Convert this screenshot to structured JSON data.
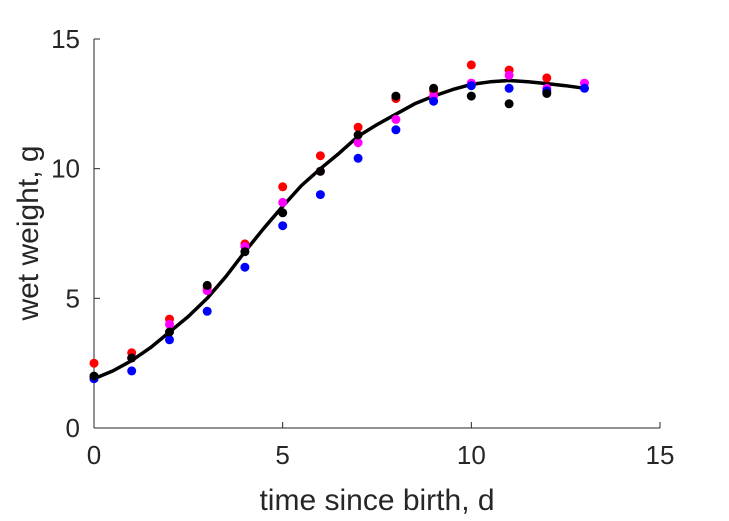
{
  "chart_data": {
    "type": "scatter",
    "title": "",
    "xlabel": "time since birth, d",
    "ylabel": "wet weight, g",
    "xlim": [
      0,
      15
    ],
    "ylim": [
      0,
      15
    ],
    "xticks": [
      "0",
      "5",
      "10",
      "15"
    ],
    "yticks": [
      "0",
      "5",
      "10",
      "15"
    ],
    "grid": false,
    "legend": "none",
    "series": [
      {
        "color": "#ff0000",
        "x": [
          0,
          1,
          2,
          3,
          4,
          5,
          6,
          7,
          8,
          9,
          10,
          11,
          12
        ],
        "y": [
          2.5,
          2.9,
          4.2,
          5.4,
          7.1,
          9.3,
          10.5,
          11.6,
          12.7,
          13.0,
          14.0,
          13.8,
          13.5
        ]
      },
      {
        "color": "#ff00ff",
        "x": [
          0,
          1,
          2,
          3,
          4,
          5,
          6,
          7,
          8,
          9,
          10,
          11,
          12,
          13
        ],
        "y": [
          1.9,
          2.7,
          4.0,
          5.3,
          7.0,
          8.7,
          9.9,
          11.0,
          11.9,
          12.8,
          13.3,
          13.6,
          13.1,
          13.3
        ]
      },
      {
        "color": "#0000ff",
        "x": [
          0,
          1,
          2,
          3,
          4,
          5,
          6,
          7,
          8,
          9,
          10,
          11,
          12,
          13
        ],
        "y": [
          1.9,
          2.2,
          3.4,
          4.5,
          6.2,
          7.8,
          9.0,
          10.4,
          11.5,
          12.6,
          13.2,
          13.1,
          13.0,
          13.1
        ]
      },
      {
        "color": "#000000",
        "x": [
          0,
          1,
          2,
          3,
          4,
          5,
          6,
          7,
          8,
          9,
          10,
          11,
          12
        ],
        "y": [
          2.0,
          2.7,
          3.7,
          5.5,
          6.8,
          8.3,
          9.9,
          11.3,
          12.8,
          13.1,
          12.8,
          12.5,
          12.9
        ]
      }
    ],
    "fit_curve": {
      "color": "#000000",
      "x": [
        0,
        0.5,
        1,
        1.5,
        2,
        2.5,
        3,
        3.5,
        4,
        4.5,
        5,
        5.5,
        6,
        6.5,
        7,
        7.5,
        8,
        8.5,
        9,
        9.5,
        10,
        10.5,
        11,
        11.5,
        12,
        12.5,
        13
      ],
      "y": [
        1.9,
        2.2,
        2.6,
        3.1,
        3.7,
        4.3,
        5.0,
        5.85,
        6.8,
        7.7,
        8.55,
        9.35,
        10.0,
        10.6,
        11.25,
        11.7,
        12.1,
        12.5,
        12.8,
        13.05,
        13.25,
        13.35,
        13.4,
        13.35,
        13.28,
        13.2,
        13.1
      ]
    }
  }
}
